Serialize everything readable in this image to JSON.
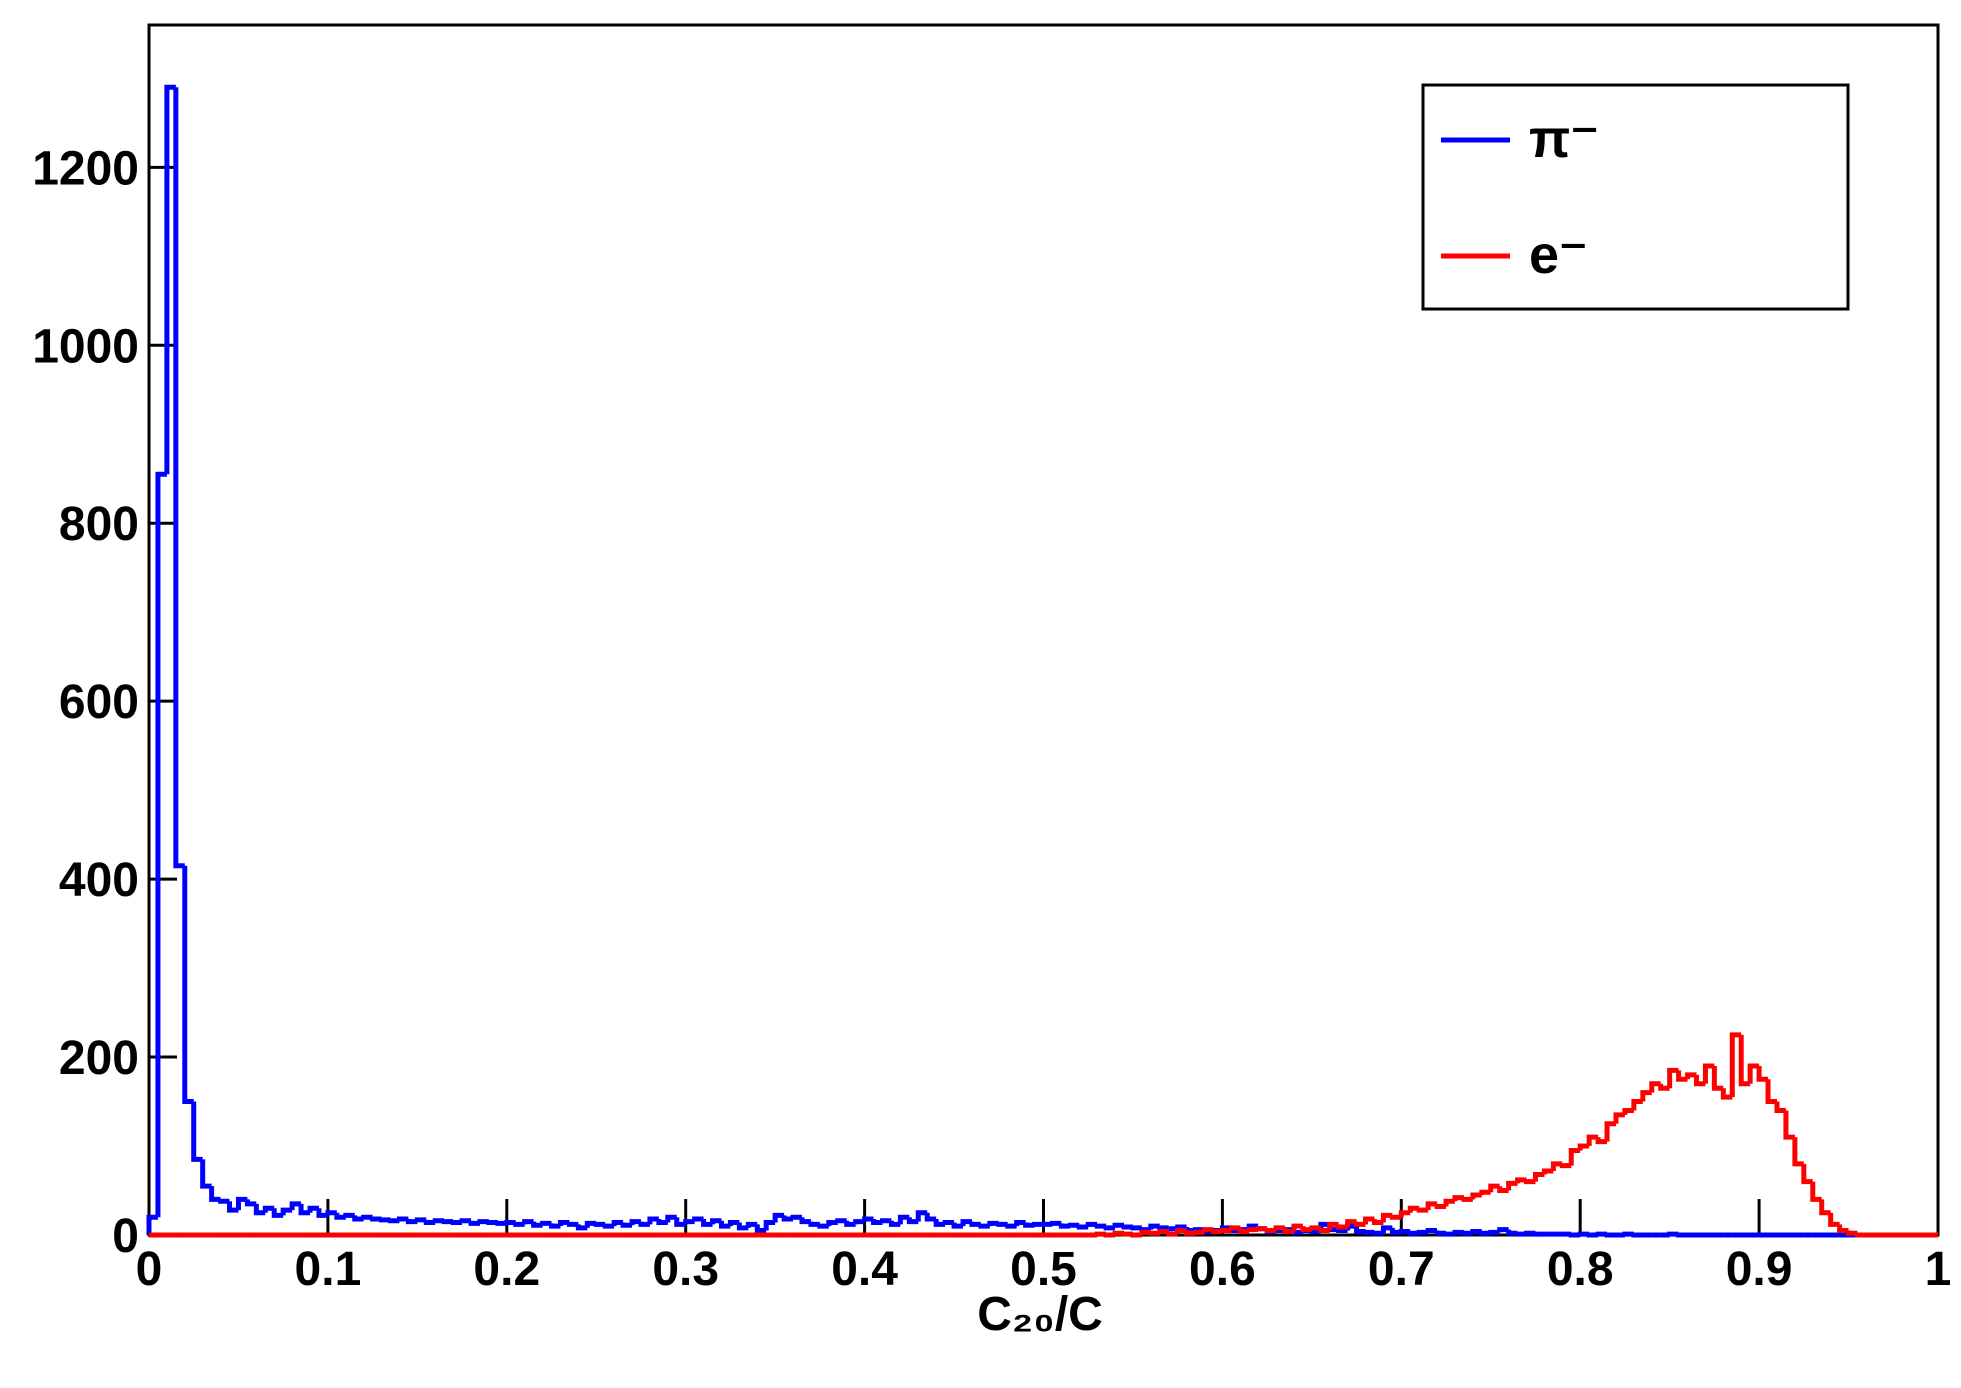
{
  "chart_data": {
    "type": "histogram",
    "x_label": "C₂₀/C",
    "xlim": [
      0,
      1
    ],
    "ylim": [
      0,
      1360
    ],
    "xticks": [
      0,
      0.1,
      0.2,
      0.3,
      0.4,
      0.5,
      0.6,
      0.7,
      0.8,
      0.9,
      1
    ],
    "yticks": [
      0,
      200,
      400,
      600,
      800,
      1000,
      1200
    ],
    "legend": "top-right",
    "bins": [
      0,
      0.005,
      0.01,
      0.015,
      0.02,
      0.025,
      0.03,
      0.035,
      0.04,
      0.045,
      0.05,
      0.055,
      0.06,
      0.065,
      0.07,
      0.075,
      0.08,
      0.085,
      0.09,
      0.095,
      0.1,
      0.105,
      0.11,
      0.115,
      0.12,
      0.125,
      0.13,
      0.135,
      0.14,
      0.145,
      0.15,
      0.155,
      0.16,
      0.165,
      0.17,
      0.175,
      0.18,
      0.185,
      0.19,
      0.195,
      0.2,
      0.205,
      0.21,
      0.215,
      0.22,
      0.225,
      0.23,
      0.235,
      0.24,
      0.245,
      0.25,
      0.255,
      0.26,
      0.265,
      0.27,
      0.275,
      0.28,
      0.285,
      0.29,
      0.295,
      0.3,
      0.305,
      0.31,
      0.315,
      0.32,
      0.325,
      0.33,
      0.335,
      0.34,
      0.345,
      0.35,
      0.355,
      0.36,
      0.365,
      0.37,
      0.375,
      0.38,
      0.385,
      0.39,
      0.395,
      0.4,
      0.405,
      0.41,
      0.415,
      0.42,
      0.425,
      0.43,
      0.435,
      0.44,
      0.445,
      0.45,
      0.455,
      0.46,
      0.465,
      0.47,
      0.475,
      0.48,
      0.485,
      0.49,
      0.495,
      0.5,
      0.505,
      0.51,
      0.515,
      0.52,
      0.525,
      0.53,
      0.535,
      0.54,
      0.545,
      0.55,
      0.555,
      0.56,
      0.565,
      0.57,
      0.575,
      0.58,
      0.585,
      0.59,
      0.595,
      0.6,
      0.605,
      0.61,
      0.615,
      0.62,
      0.625,
      0.63,
      0.635,
      0.64,
      0.645,
      0.65,
      0.655,
      0.66,
      0.665,
      0.67,
      0.675,
      0.68,
      0.685,
      0.69,
      0.695,
      0.7,
      0.705,
      0.71,
      0.715,
      0.72,
      0.725,
      0.73,
      0.735,
      0.74,
      0.745,
      0.75,
      0.755,
      0.76,
      0.765,
      0.77,
      0.775,
      0.78,
      0.785,
      0.79,
      0.795,
      0.8,
      0.805,
      0.81,
      0.815,
      0.82,
      0.825,
      0.83,
      0.835,
      0.84,
      0.845,
      0.85,
      0.855,
      0.86,
      0.865,
      0.87,
      0.875,
      0.88,
      0.885,
      0.89,
      0.895,
      0.9,
      0.905,
      0.91,
      0.915,
      0.92,
      0.925,
      0.93,
      0.935,
      0.94,
      0.945,
      0.95,
      0.955,
      0.96,
      0.965,
      0.97,
      0.975,
      0.98,
      0.985,
      0.99,
      0.995,
      1
    ],
    "series": [
      {
        "name": "π⁻",
        "color": "#0000ff",
        "values": [
          20,
          855,
          1290,
          415,
          150,
          85,
          55,
          40,
          38,
          28,
          40,
          35,
          25,
          30,
          22,
          28,
          35,
          25,
          30,
          22,
          25,
          20,
          22,
          18,
          20,
          18,
          17,
          16,
          18,
          15,
          17,
          14,
          16,
          15,
          14,
          16,
          13,
          15,
          14,
          13,
          14,
          12,
          15,
          11,
          13,
          10,
          14,
          12,
          8,
          13,
          12,
          10,
          14,
          11,
          15,
          12,
          18,
          14,
          20,
          12,
          15,
          18,
          12,
          16,
          10,
          14,
          8,
          12,
          5,
          14,
          22,
          18,
          20,
          15,
          12,
          10,
          14,
          16,
          12,
          15,
          18,
          14,
          16,
          12,
          20,
          15,
          25,
          18,
          12,
          14,
          10,
          15,
          12,
          10,
          13,
          12,
          10,
          14,
          11,
          12,
          12,
          13,
          10,
          11,
          9,
          12,
          10,
          8,
          11,
          9,
          8,
          6,
          10,
          8,
          7,
          9,
          5,
          6,
          4,
          5,
          8,
          5,
          6,
          10,
          7,
          4,
          5,
          6,
          3,
          5,
          4,
          12,
          6,
          5,
          10,
          4,
          3,
          2,
          8,
          3,
          4,
          2,
          3,
          5,
          2,
          1,
          3,
          2,
          4,
          2,
          3,
          6,
          2,
          1,
          2,
          1,
          1,
          1,
          1,
          0,
          1,
          0,
          1,
          0,
          0,
          1,
          0,
          0,
          0,
          0,
          1,
          0,
          0,
          0,
          0,
          0,
          0,
          0,
          0,
          0,
          0,
          0,
          0,
          0,
          0,
          0,
          0,
          0,
          0,
          0,
          0,
          0,
          0,
          0,
          0,
          0,
          0,
          0,
          0,
          0
        ]
      },
      {
        "name": "e⁻",
        "color": "#ff0000",
        "values": [
          0,
          0,
          0,
          0,
          0,
          0,
          0,
          0,
          0,
          0,
          0,
          0,
          0,
          0,
          0,
          0,
          0,
          0,
          0,
          0,
          0,
          0,
          0,
          0,
          0,
          0,
          0,
          0,
          0,
          0,
          0,
          0,
          0,
          0,
          0,
          0,
          0,
          0,
          0,
          0,
          0,
          0,
          0,
          0,
          0,
          0,
          0,
          0,
          0,
          0,
          0,
          0,
          0,
          0,
          0,
          0,
          0,
          0,
          0,
          0,
          0,
          0,
          0,
          0,
          0,
          0,
          0,
          0,
          0,
          0,
          0,
          0,
          0,
          0,
          0,
          0,
          0,
          0,
          0,
          0,
          0,
          0,
          0,
          0,
          0,
          0,
          0,
          0,
          0,
          0,
          0,
          0,
          0,
          0,
          0,
          0,
          0,
          0,
          0,
          0,
          0,
          0,
          0,
          0,
          0,
          0,
          1,
          0,
          2,
          1,
          0,
          3,
          2,
          4,
          1,
          5,
          2,
          3,
          6,
          4,
          5,
          8,
          4,
          6,
          7,
          5,
          8,
          4,
          10,
          6,
          8,
          5,
          12,
          9,
          15,
          12,
          18,
          14,
          22,
          20,
          25,
          30,
          28,
          35,
          32,
          38,
          42,
          40,
          45,
          48,
          55,
          50,
          58,
          62,
          60,
          68,
          72,
          80,
          78,
          95,
          100,
          110,
          105,
          125,
          135,
          140,
          150,
          160,
          170,
          165,
          185,
          175,
          180,
          170,
          190,
          165,
          155,
          225,
          170,
          190,
          175,
          150,
          140,
          110,
          80,
          60,
          40,
          25,
          12,
          5,
          2,
          0,
          0,
          0,
          0,
          0,
          0,
          0,
          0,
          0
        ]
      }
    ]
  }
}
